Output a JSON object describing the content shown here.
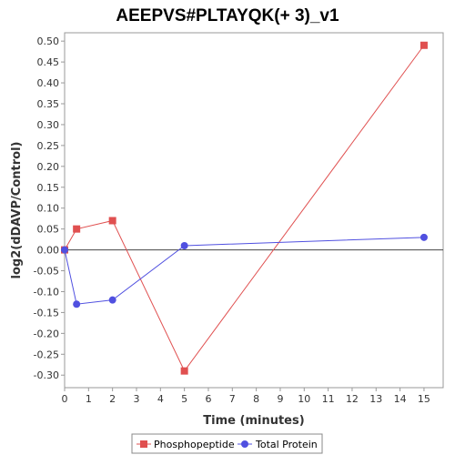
{
  "chart_data": {
    "type": "line",
    "title": "AEEPVS#PLTAYQK(+ 3)_v1",
    "xlabel": "Time (minutes)",
    "ylabel": "log2(dDAVP/Control)",
    "xlim": [
      0,
      15.8
    ],
    "ylim": [
      -0.33,
      0.52
    ],
    "xticks": [
      0,
      1,
      2,
      3,
      4,
      5,
      6,
      7,
      8,
      9,
      10,
      11,
      12,
      13,
      14,
      15
    ],
    "yticks": [
      -0.3,
      -0.25,
      -0.2,
      -0.15,
      -0.1,
      -0.05,
      0.0,
      0.05,
      0.1,
      0.15,
      0.2,
      0.25,
      0.3,
      0.35,
      0.4,
      0.45,
      0.5
    ],
    "ytick_labels": [
      "-0.30",
      "-0.25",
      "-0.20",
      "-0.15",
      "-0.10",
      "-0.05",
      "0.00",
      "0.05",
      "0.10",
      "0.15",
      "0.20",
      "0.25",
      "0.30",
      "0.35",
      "0.40",
      "0.45",
      "0.50"
    ],
    "zero_line": 0,
    "grid": false,
    "legend_position": "bottom",
    "series": [
      {
        "name": "Phosphopeptide",
        "color": "#e05050",
        "marker": "square",
        "x": [
          0,
          0.5,
          2,
          5,
          15
        ],
        "y": [
          0.0,
          0.05,
          0.07,
          -0.29,
          0.49
        ]
      },
      {
        "name": "Total Protein",
        "color": "#5050e0",
        "marker": "circle",
        "x": [
          0,
          0.5,
          2,
          5,
          15
        ],
        "y": [
          0.0,
          -0.13,
          -0.12,
          0.01,
          0.03
        ]
      }
    ]
  }
}
